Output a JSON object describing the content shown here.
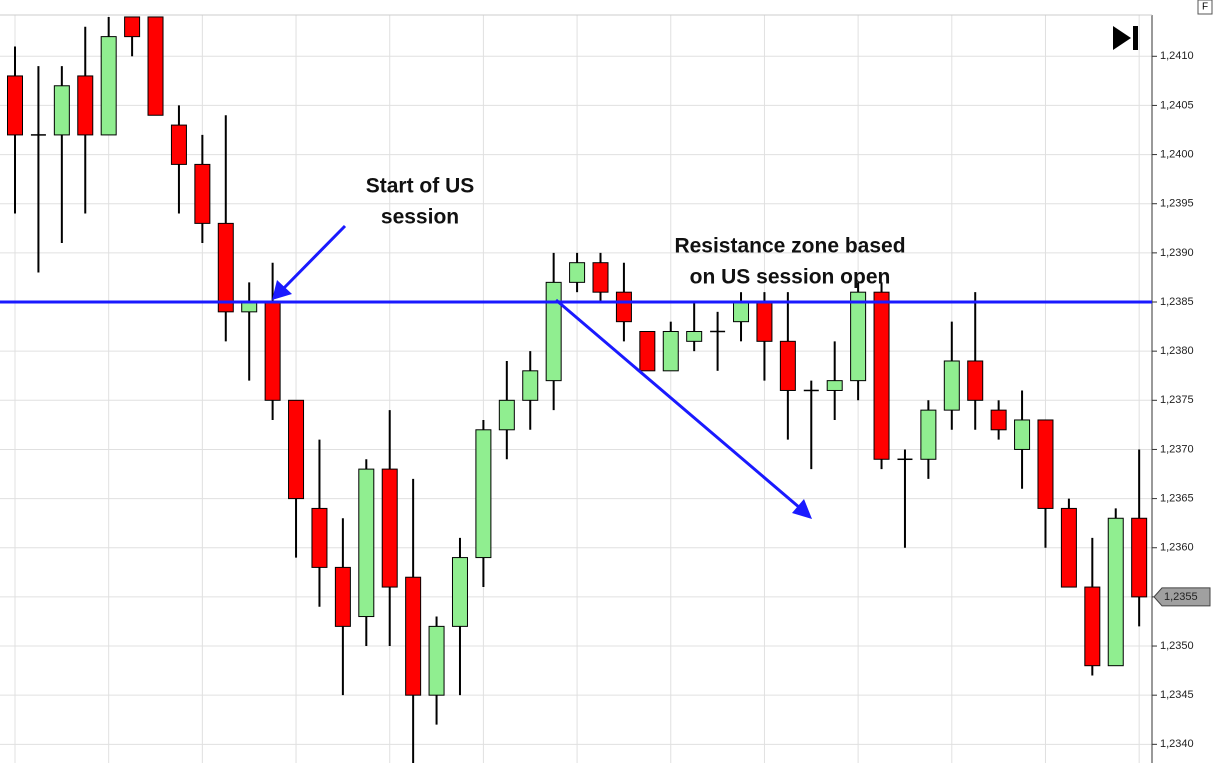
{
  "chart_data": {
    "type": "candlestick",
    "categories": [
      null,
      null,
      null,
      null,
      null,
      null,
      null,
      null,
      null,
      null,
      null,
      null,
      null,
      null,
      null,
      null,
      null,
      null,
      null,
      null,
      null,
      null,
      null,
      null,
      null,
      null,
      null,
      null,
      null,
      null,
      null,
      null,
      null,
      null,
      null,
      null,
      null,
      null,
      null,
      null,
      null,
      null,
      null,
      null,
      null,
      null,
      null,
      null,
      null
    ],
    "open": [
      1.2408,
      1.2402,
      1.2402,
      1.2408,
      1.2402,
      1.2414,
      1.2414,
      1.2403,
      1.2399,
      1.2393,
      1.2384,
      1.2385,
      1.2375,
      1.2364,
      1.2358,
      1.2353,
      1.2368,
      1.2357,
      1.2345,
      1.2352,
      1.2359,
      1.2372,
      1.2375,
      1.2377,
      1.2387,
      1.2389,
      1.2386,
      1.2382,
      1.2378,
      1.2381,
      1.2382,
      1.2383,
      1.2385,
      1.2381,
      1.2376,
      1.2376,
      1.2377,
      1.2386,
      1.2369,
      1.2369,
      1.2374,
      1.2379,
      1.2374,
      1.237,
      1.2373,
      1.2364,
      1.2356,
      1.2348,
      1.2363
    ],
    "high": [
      1.2411,
      1.2409,
      1.2409,
      1.2413,
      1.2414,
      1.2414,
      1.2414,
      1.2405,
      1.2402,
      1.2404,
      1.2387,
      1.2389,
      1.2375,
      1.2371,
      1.2363,
      1.2369,
      1.2374,
      1.2367,
      1.2353,
      1.2361,
      1.2373,
      1.2379,
      1.238,
      1.239,
      1.239,
      1.239,
      1.2389,
      1.2382,
      1.2383,
      1.2385,
      1.2384,
      1.2386,
      1.2386,
      1.2386,
      1.2377,
      1.2381,
      1.2387,
      1.2387,
      1.237,
      1.2375,
      1.2383,
      1.2386,
      1.2375,
      1.2376,
      1.2373,
      1.2365,
      1.2361,
      1.2364,
      1.237
    ],
    "low": [
      1.2394,
      1.2388,
      1.2391,
      1.2394,
      1.2402,
      1.241,
      1.2404,
      1.2394,
      1.2391,
      1.2381,
      1.2377,
      1.2373,
      1.2359,
      1.2354,
      1.2345,
      1.235,
      1.235,
      1.2338,
      1.2342,
      1.2345,
      1.2356,
      1.2369,
      1.2372,
      1.2374,
      1.2386,
      1.2385,
      1.2381,
      1.2378,
      1.2378,
      1.238,
      1.2378,
      1.2381,
      1.2377,
      1.2371,
      1.2368,
      1.2373,
      1.2375,
      1.2368,
      1.236,
      1.2367,
      1.2372,
      1.2372,
      1.2371,
      1.2366,
      1.236,
      1.2356,
      1.2347,
      1.2348,
      1.2352
    ],
    "close": [
      1.2402,
      1.2402,
      1.2407,
      1.2402,
      1.2412,
      1.2412,
      1.2404,
      1.2399,
      1.2393,
      1.2384,
      1.2385,
      1.2375,
      1.2365,
      1.2358,
      1.2352,
      1.2368,
      1.2356,
      1.2345,
      1.2352,
      1.2359,
      1.2372,
      1.2375,
      1.2378,
      1.2387,
      1.2389,
      1.2386,
      1.2383,
      1.2378,
      1.2382,
      1.2382,
      1.2382,
      1.2385,
      1.2381,
      1.2376,
      1.2376,
      1.2377,
      1.2386,
      1.2369,
      1.2369,
      1.2374,
      1.2379,
      1.2375,
      1.2372,
      1.2373,
      1.2364,
      1.2356,
      1.2348,
      1.2363,
      1.2355
    ],
    "up_color": "#90ee90",
    "down_color": "#ff0000",
    "ylim": [
      1.23381,
      1.24142
    ],
    "yticks": [
      {
        "value": 1.234,
        "label": "1,2340"
      },
      {
        "value": 1.2345,
        "label": "1,2345"
      },
      {
        "value": 1.235,
        "label": "1,2350"
      },
      {
        "value": 1.2355,
        "label": "1,2355"
      },
      {
        "value": 1.236,
        "label": "1,2360"
      },
      {
        "value": 1.2365,
        "label": "1,2365"
      },
      {
        "value": 1.237,
        "label": "1,2370"
      },
      {
        "value": 1.2375,
        "label": "1,2375"
      },
      {
        "value": 1.238,
        "label": "1,2380"
      },
      {
        "value": 1.2385,
        "label": "1,2385"
      },
      {
        "value": 1.239,
        "label": "1,2390"
      },
      {
        "value": 1.2395,
        "label": "1,2395"
      },
      {
        "value": 1.24,
        "label": "1,2400"
      },
      {
        "value": 1.2405,
        "label": "1,2405"
      },
      {
        "value": 1.241,
        "label": "1,2410"
      }
    ],
    "grid": true,
    "level": {
      "value": 1.2385,
      "color": "#1a1aff"
    },
    "price_tag": {
      "value": 1.2355,
      "label": "1,2355"
    },
    "annotations": [
      [
        "Start of US",
        "session"
      ],
      [
        "Resistance zone based",
        "on US session open"
      ]
    ],
    "corner_label": "F"
  }
}
